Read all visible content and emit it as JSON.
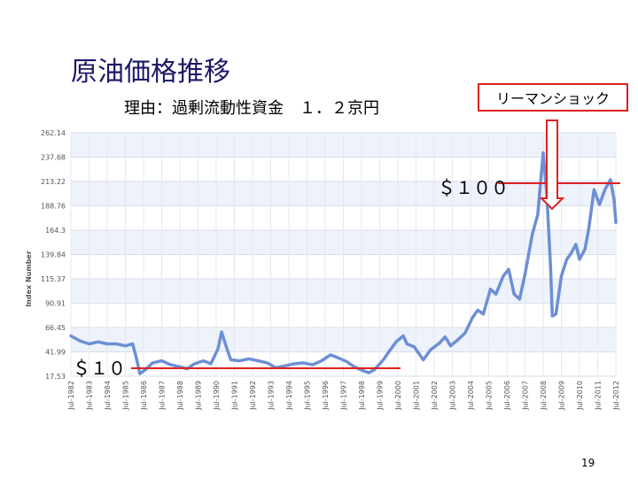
{
  "slide": {
    "title": "原油価格推移",
    "subtitle": "理由：過剰流動性資金　１．２京円",
    "callout": "リーマンショック",
    "label_high": "＄１００",
    "label_low": "＄１０",
    "page_number": "19"
  },
  "colors": {
    "line": "#6d8fd4",
    "annotation": "#e02020",
    "grid_band": "#eef2fa",
    "axis_text": "#555555"
  },
  "chart_data": {
    "type": "line",
    "ylabel": "Index Number",
    "y_ticks": [
      "17.53",
      "41.99",
      "66.45",
      "90.91",
      "115.37",
      "139.84",
      "164.3",
      "188.76",
      "213.22",
      "237.68",
      "262.14"
    ],
    "ylim": [
      17.53,
      262.14
    ],
    "xlim": [
      1982.5,
      2012.5
    ],
    "x_ticks": [
      "Jul-1982",
      "Jul-1983",
      "Jul-1984",
      "Jul-1985",
      "Jul-1986",
      "Jul-1987",
      "Jul-1988",
      "Jul-1989",
      "Jul-1990",
      "Jul-1991",
      "Jul-1992",
      "Jul-1993",
      "Jul-1994",
      "Jul-1995",
      "Jul-1996",
      "Jul-1997",
      "Jul-1998",
      "Jul-1999",
      "Jul-2000",
      "Jul-2001",
      "Jul-2002",
      "Jul-2003",
      "Jul-2004",
      "Jul-2005",
      "Jul-2006",
      "Jul-2007",
      "Jul-2008",
      "Jul-2009",
      "Jul-2010",
      "Jul-2011",
      "Jul-2012"
    ],
    "grid": true,
    "series": [
      {
        "points": [
          [
            1982.5,
            58
          ],
          [
            1983.0,
            53
          ],
          [
            1983.5,
            50
          ],
          [
            1984.0,
            52
          ],
          [
            1984.5,
            50
          ],
          [
            1985.0,
            50
          ],
          [
            1985.5,
            48
          ],
          [
            1985.9,
            50
          ],
          [
            1986.1,
            36
          ],
          [
            1986.3,
            20
          ],
          [
            1986.6,
            24
          ],
          [
            1987.0,
            31
          ],
          [
            1987.5,
            33
          ],
          [
            1988.0,
            29
          ],
          [
            1988.5,
            27
          ],
          [
            1988.9,
            25
          ],
          [
            1989.3,
            30
          ],
          [
            1989.8,
            33
          ],
          [
            1990.2,
            30
          ],
          [
            1990.6,
            45
          ],
          [
            1990.8,
            62
          ],
          [
            1991.0,
            50
          ],
          [
            1991.3,
            34
          ],
          [
            1991.8,
            33
          ],
          [
            1992.3,
            35
          ],
          [
            1992.8,
            33
          ],
          [
            1993.3,
            31
          ],
          [
            1993.8,
            26
          ],
          [
            1994.3,
            28
          ],
          [
            1994.8,
            30
          ],
          [
            1995.3,
            31
          ],
          [
            1995.8,
            29
          ],
          [
            1996.3,
            33
          ],
          [
            1996.8,
            39
          ],
          [
            1997.2,
            36
          ],
          [
            1997.7,
            32
          ],
          [
            1998.1,
            27
          ],
          [
            1998.6,
            23
          ],
          [
            1998.9,
            21
          ],
          [
            1999.2,
            24
          ],
          [
            1999.7,
            34
          ],
          [
            2000.0,
            42
          ],
          [
            2000.4,
            52
          ],
          [
            2000.8,
            58
          ],
          [
            2001.0,
            50
          ],
          [
            2001.4,
            47
          ],
          [
            2001.9,
            34
          ],
          [
            2002.3,
            44
          ],
          [
            2002.8,
            51
          ],
          [
            2003.1,
            57
          ],
          [
            2003.4,
            48
          ],
          [
            2003.8,
            54
          ],
          [
            2004.2,
            61
          ],
          [
            2004.6,
            76
          ],
          [
            2004.9,
            84
          ],
          [
            2005.2,
            80
          ],
          [
            2005.6,
            105
          ],
          [
            2005.9,
            100
          ],
          [
            2006.3,
            118
          ],
          [
            2006.6,
            125
          ],
          [
            2006.9,
            100
          ],
          [
            2007.2,
            95
          ],
          [
            2007.5,
            120
          ],
          [
            2007.9,
            160
          ],
          [
            2008.2,
            180
          ],
          [
            2008.5,
            242
          ],
          [
            2008.7,
            200
          ],
          [
            2008.9,
            130
          ],
          [
            2009.0,
            78
          ],
          [
            2009.2,
            80
          ],
          [
            2009.5,
            118
          ],
          [
            2009.8,
            135
          ],
          [
            2010.0,
            140
          ],
          [
            2010.3,
            150
          ],
          [
            2010.5,
            135
          ],
          [
            2010.8,
            145
          ],
          [
            2011.0,
            165
          ],
          [
            2011.3,
            205
          ],
          [
            2011.6,
            190
          ],
          [
            2011.9,
            205
          ],
          [
            2012.2,
            215
          ],
          [
            2012.4,
            195
          ],
          [
            2012.5,
            172
          ]
        ]
      }
    ]
  }
}
